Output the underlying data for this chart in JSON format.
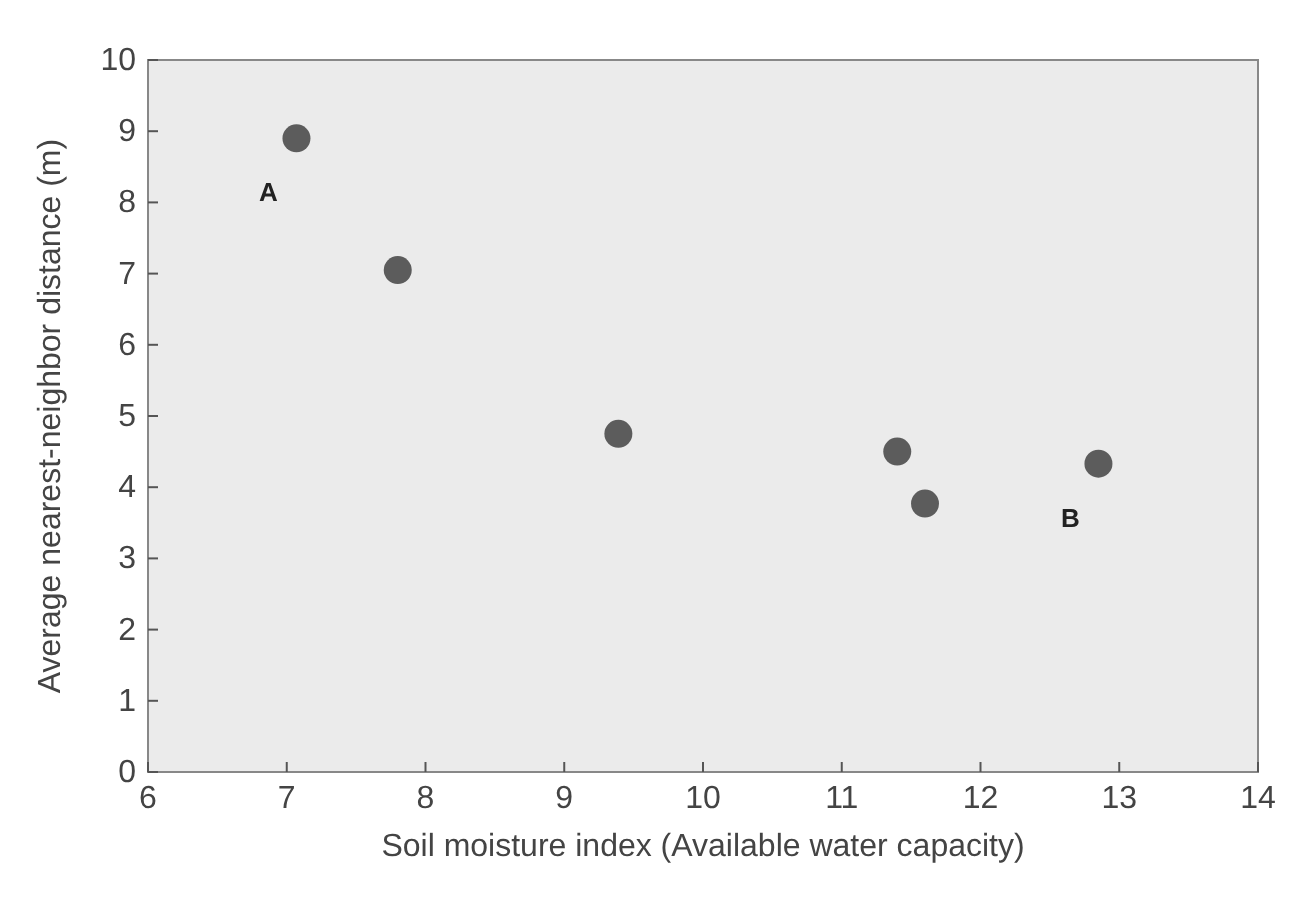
{
  "chart_data": {
    "type": "scatter",
    "xlabel": "Soil moisture index (Available water capacity)",
    "ylabel": "Average nearest-neighbor distance (m)",
    "x": [
      7.07,
      7.8,
      9.39,
      11.4,
      11.6,
      12.85
    ],
    "values": [
      8.9,
      7.05,
      4.75,
      4.5,
      3.77,
      4.33
    ],
    "color": "#5c5c5c",
    "marker": "circle",
    "grid": false,
    "xlim": [
      6,
      14
    ],
    "xticks": [
      6,
      7,
      8,
      9,
      10,
      11,
      12,
      13,
      14
    ],
    "ylim": [
      0,
      10
    ],
    "yticks": [
      0,
      1,
      2,
      3,
      4,
      5,
      6,
      7,
      8,
      9,
      10
    ],
    "annotations": [
      {
        "text": "A",
        "x": 7.07,
        "y": 8.9
      },
      {
        "text": "B",
        "x": 12.85,
        "y": 4.33
      }
    ]
  }
}
